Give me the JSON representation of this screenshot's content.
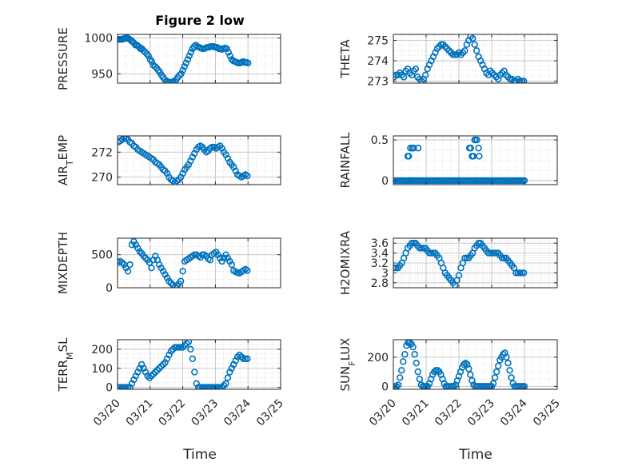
{
  "figure": {
    "title": "Figure 2 low",
    "marker_color": "#0072BD",
    "x_tick_labels": [
      "03/20",
      "03/21",
      "03/22",
      "03/23",
      "03/24",
      "03/25"
    ]
  },
  "chart_data": [
    {
      "type": "scatter",
      "ylabel": "PRESSURE",
      "xlabel": "",
      "ylim": [
        937,
        1005
      ],
      "yticks": [
        950,
        1000
      ],
      "ytick_labels": [
        "950",
        "1000"
      ],
      "x": [
        0.02,
        0.06,
        0.1,
        0.14,
        0.18,
        0.22,
        0.26,
        0.3,
        0.34,
        0.38,
        0.42,
        0.46,
        0.5,
        0.55,
        0.6,
        0.65,
        0.7,
        0.75,
        0.8,
        0.85,
        0.9,
        0.95,
        1.0,
        1.05,
        1.1,
        1.15,
        1.2,
        1.25,
        1.3,
        1.35,
        1.4,
        1.45,
        1.5,
        1.55,
        1.6,
        1.65,
        1.7,
        1.75,
        1.8,
        1.85,
        1.9,
        1.95,
        2.0,
        2.05,
        2.1,
        2.15,
        2.2,
        2.25,
        2.3,
        2.35,
        2.4,
        2.45,
        2.5,
        2.55,
        2.6,
        2.65,
        2.7,
        2.75,
        2.8,
        2.85,
        2.9,
        2.95,
        3.0,
        3.05,
        3.1,
        3.15,
        3.2,
        3.25,
        3.3,
        3.35,
        3.4,
        3.45,
        3.5,
        3.55,
        3.6,
        3.65,
        3.7,
        3.75,
        3.8,
        3.85,
        3.9,
        3.95,
        4.0
      ],
      "y": [
        998,
        998,
        998,
        998,
        999,
        999,
        1000,
        1000,
        999,
        998,
        996,
        995,
        993,
        990,
        990,
        988,
        985,
        985,
        982,
        980,
        978,
        975,
        970,
        967,
        962,
        960,
        958,
        955,
        952,
        948,
        945,
        942,
        940,
        939,
        938,
        938,
        939,
        940,
        942,
        945,
        948,
        950,
        955,
        960,
        965,
        970,
        975,
        980,
        985,
        988,
        990,
        988,
        987,
        986,
        985,
        985,
        986,
        987,
        987,
        988,
        988,
        988,
        987,
        987,
        985,
        985,
        984,
        985,
        986,
        985,
        980,
        975,
        970,
        968,
        967,
        966,
        965,
        965,
        966,
        967,
        966,
        966,
        965
      ]
    },
    {
      "type": "scatter",
      "ylabel": "THETA",
      "xlabel": "",
      "ylim": [
        272.9,
        275.3
      ],
      "yticks": [
        273,
        274,
        275
      ],
      "ytick_labels": [
        "273",
        "274",
        "275"
      ],
      "x": [
        0.02,
        0.08,
        0.14,
        0.2,
        0.26,
        0.32,
        0.38,
        0.44,
        0.5,
        0.56,
        0.62,
        0.68,
        0.74,
        0.8,
        0.86,
        0.92,
        0.98,
        1.04,
        1.1,
        1.16,
        1.22,
        1.28,
        1.34,
        1.4,
        1.46,
        1.52,
        1.58,
        1.64,
        1.7,
        1.76,
        1.82,
        1.88,
        1.94,
        2.0,
        2.06,
        2.12,
        2.18,
        2.24,
        2.3,
        2.36,
        2.42,
        2.48,
        2.54,
        2.6,
        2.66,
        2.72,
        2.78,
        2.84,
        2.9,
        2.96,
        3.02,
        3.08,
        3.14,
        3.2,
        3.26,
        3.32,
        3.38,
        3.44,
        3.5,
        3.56,
        3.62,
        3.68,
        3.74,
        3.8,
        3.86,
        3.92,
        3.98
      ],
      "y": [
        273.2,
        273.3,
        273.3,
        273.4,
        273.3,
        273.2,
        273.5,
        273.6,
        273.4,
        273.3,
        273.5,
        273.6,
        273.2,
        273.1,
        273.0,
        273.1,
        273.3,
        273.6,
        273.8,
        274.0,
        274.2,
        274.4,
        274.6,
        274.7,
        274.8,
        274.8,
        274.7,
        274.6,
        274.5,
        274.4,
        274.3,
        274.3,
        274.3,
        274.4,
        274.3,
        274.4,
        274.5,
        274.8,
        275.0,
        275.2,
        275.1,
        274.8,
        274.5,
        274.2,
        274.0,
        273.8,
        273.6,
        273.4,
        273.3,
        273.5,
        273.4,
        273.3,
        273.2,
        273.1,
        273.3,
        273.4,
        273.5,
        273.3,
        273.2,
        273.1,
        273.1,
        273.0,
        273.0,
        273.1,
        273.0,
        273.0,
        273.0
      ]
    },
    {
      "type": "scatter",
      "ylabel": "AIR_T EMP",
      "ylabel_main": "AIR",
      "ylabel_sub": "T",
      "ylabel_rest": "EMP",
      "xlabel": "",
      "ylim": [
        269.4,
        273.3
      ],
      "yticks": [
        270,
        272
      ],
      "ytick_labels": [
        "270",
        "272"
      ],
      "x": [
        0.02,
        0.08,
        0.14,
        0.2,
        0.26,
        0.32,
        0.38,
        0.44,
        0.5,
        0.56,
        0.62,
        0.68,
        0.74,
        0.8,
        0.86,
        0.92,
        0.98,
        1.04,
        1.1,
        1.16,
        1.22,
        1.28,
        1.34,
        1.4,
        1.46,
        1.52,
        1.58,
        1.64,
        1.7,
        1.76,
        1.82,
        1.88,
        1.94,
        2.0,
        2.06,
        2.12,
        2.18,
        2.24,
        2.3,
        2.36,
        2.42,
        2.48,
        2.54,
        2.6,
        2.66,
        2.72,
        2.78,
        2.84,
        2.9,
        2.96,
        3.02,
        3.08,
        3.14,
        3.2,
        3.26,
        3.32,
        3.38,
        3.44,
        3.5,
        3.56,
        3.62,
        3.68,
        3.74,
        3.8,
        3.86,
        3.92,
        3.98
      ],
      "y": [
        272.8,
        272.9,
        273.0,
        273.1,
        273.1,
        273.0,
        272.8,
        272.7,
        272.5,
        272.4,
        272.2,
        272.1,
        272.0,
        271.9,
        271.8,
        271.7,
        271.6,
        271.5,
        271.4,
        271.2,
        271.1,
        271.0,
        270.8,
        270.6,
        270.5,
        270.3,
        270.0,
        269.8,
        269.7,
        269.6,
        269.7,
        269.8,
        270.0,
        270.3,
        270.6,
        270.8,
        271.0,
        271.3,
        271.6,
        271.9,
        272.2,
        272.4,
        272.5,
        272.4,
        272.2,
        272.0,
        272.1,
        272.3,
        272.4,
        272.4,
        272.3,
        272.4,
        272.5,
        272.3,
        272.0,
        271.8,
        271.5,
        271.2,
        271.0,
        270.8,
        270.5,
        270.2,
        270.1,
        270.0,
        270.1,
        270.2,
        270.1
      ]
    },
    {
      "type": "scatter",
      "ylabel": "RAINFALL",
      "xlabel": "",
      "ylim": [
        -0.05,
        0.55
      ],
      "yticks": [
        0,
        0.5
      ],
      "ytick_labels": [
        "0",
        "0.5"
      ],
      "x": [
        0.0,
        0.05,
        0.1,
        0.15,
        0.2,
        0.25,
        0.3,
        0.35,
        0.4,
        0.45,
        0.5,
        0.5,
        0.55,
        0.55,
        0.6,
        0.65,
        0.7,
        0.75,
        0.8,
        0.85,
        0.9,
        0.95,
        1.0,
        1.05,
        1.1,
        1.15,
        1.2,
        1.25,
        1.3,
        1.35,
        1.4,
        1.45,
        1.5,
        1.55,
        1.6,
        1.65,
        1.7,
        1.75,
        1.8,
        1.85,
        1.9,
        1.95,
        2.0,
        2.05,
        2.1,
        2.15,
        2.2,
        2.25,
        2.3,
        2.35,
        2.4,
        2.45,
        2.5,
        2.55,
        2.6,
        2.65,
        2.7,
        2.75,
        2.8,
        2.85,
        2.9,
        2.95,
        3.0,
        3.05,
        3.1,
        3.15,
        3.2,
        3.25,
        3.3,
        3.35,
        3.4,
        3.45,
        3.5,
        3.55,
        3.6,
        3.65,
        3.7,
        3.75,
        3.8,
        3.85,
        3.9,
        3.95,
        4.0,
        0.44,
        0.47,
        0.52,
        0.58,
        0.62,
        0.76,
        2.32,
        2.36,
        2.4,
        2.44,
        2.48,
        2.5,
        2.55,
        2.6,
        2.62
      ],
      "y": [
        0,
        0,
        0,
        0,
        0,
        0,
        0,
        0,
        0,
        0,
        0,
        0,
        0,
        0,
        0,
        0,
        0,
        0,
        0,
        0,
        0,
        0,
        0,
        0,
        0,
        0,
        0,
        0,
        0,
        0,
        0,
        0,
        0,
        0,
        0,
        0,
        0,
        0,
        0,
        0,
        0,
        0,
        0,
        0,
        0,
        0,
        0,
        0,
        0,
        0,
        0,
        0,
        0,
        0,
        0,
        0,
        0,
        0,
        0,
        0,
        0,
        0,
        0,
        0,
        0,
        0,
        0,
        0,
        0,
        0,
        0,
        0,
        0,
        0,
        0,
        0,
        0,
        0,
        0,
        0,
        0,
        0,
        0,
        0.3,
        0.3,
        0.4,
        0.4,
        0.4,
        0.4,
        0.4,
        0.4,
        0.3,
        0.3,
        0.5,
        0.5,
        0.5,
        0.4,
        0.3
      ]
    },
    {
      "type": "scatter",
      "ylabel": "MIXDEPTH",
      "xlabel": "",
      "ylim": [
        0,
        750
      ],
      "yticks": [
        0,
        500
      ],
      "ytick_labels": [
        "0",
        "500"
      ],
      "x": [
        0.02,
        0.08,
        0.14,
        0.2,
        0.26,
        0.32,
        0.38,
        0.44,
        0.5,
        0.56,
        0.62,
        0.68,
        0.74,
        0.8,
        0.86,
        0.92,
        0.98,
        1.04,
        1.1,
        1.16,
        1.22,
        1.28,
        1.34,
        1.4,
        1.46,
        1.52,
        1.58,
        1.64,
        1.7,
        1.76,
        1.82,
        1.88,
        1.94,
        2.0,
        2.06,
        2.12,
        2.18,
        2.24,
        2.3,
        2.36,
        2.42,
        2.48,
        2.54,
        2.6,
        2.66,
        2.72,
        2.78,
        2.84,
        2.9,
        2.96,
        3.02,
        3.08,
        3.14,
        3.2,
        3.26,
        3.32,
        3.38,
        3.44,
        3.5,
        3.56,
        3.62,
        3.68,
        3.74,
        3.8,
        3.86,
        3.92,
        3.98
      ],
      "y": [
        380,
        400,
        380,
        350,
        300,
        250,
        350,
        650,
        700,
        650,
        600,
        550,
        520,
        480,
        450,
        420,
        380,
        300,
        420,
        480,
        420,
        350,
        300,
        250,
        200,
        150,
        100,
        70,
        40,
        20,
        30,
        60,
        100,
        250,
        400,
        420,
        440,
        460,
        480,
        500,
        500,
        480,
        460,
        500,
        500,
        480,
        440,
        420,
        500,
        520,
        540,
        500,
        450,
        400,
        450,
        500,
        450,
        400,
        350,
        260,
        240,
        230,
        220,
        240,
        260,
        280,
        260
      ]
    },
    {
      "type": "scatter",
      "ylabel": "H2OMIXRA",
      "xlabel": "",
      "ylim": [
        2.7,
        3.7
      ],
      "yticks": [
        2.8,
        3,
        3.2,
        3.4,
        3.6
      ],
      "ytick_labels": [
        "2.8",
        "3",
        "3.2",
        "3.4",
        "3.6"
      ],
      "x": [
        0.02,
        0.08,
        0.14,
        0.2,
        0.26,
        0.32,
        0.38,
        0.44,
        0.5,
        0.56,
        0.62,
        0.68,
        0.74,
        0.8,
        0.86,
        0.92,
        0.98,
        1.04,
        1.1,
        1.16,
        1.22,
        1.28,
        1.34,
        1.4,
        1.46,
        1.52,
        1.58,
        1.64,
        1.7,
        1.76,
        1.82,
        1.88,
        1.94,
        2.0,
        2.06,
        2.12,
        2.18,
        2.24,
        2.3,
        2.36,
        2.42,
        2.48,
        2.54,
        2.6,
        2.66,
        2.72,
        2.78,
        2.84,
        2.9,
        2.96,
        3.02,
        3.08,
        3.14,
        3.2,
        3.26,
        3.32,
        3.38,
        3.44,
        3.5,
        3.56,
        3.62,
        3.68,
        3.74,
        3.8,
        3.86,
        3.92,
        3.98
      ],
      "y": [
        3.1,
        3.1,
        3.1,
        3.15,
        3.2,
        3.3,
        3.4,
        3.5,
        3.55,
        3.6,
        3.6,
        3.6,
        3.55,
        3.5,
        3.5,
        3.5,
        3.5,
        3.45,
        3.4,
        3.4,
        3.4,
        3.4,
        3.35,
        3.3,
        3.2,
        3.1,
        3.0,
        2.95,
        2.9,
        2.85,
        2.8,
        2.75,
        2.85,
        2.95,
        3.1,
        3.2,
        3.3,
        3.3,
        3.3,
        3.35,
        3.4,
        3.5,
        3.55,
        3.6,
        3.6,
        3.55,
        3.5,
        3.45,
        3.4,
        3.4,
        3.4,
        3.4,
        3.4,
        3.4,
        3.35,
        3.3,
        3.3,
        3.3,
        3.25,
        3.2,
        3.15,
        3.1,
        3.0,
        3.0,
        3.0,
        3.0,
        3.0
      ]
    },
    {
      "type": "scatter",
      "ylabel": "TERR_M SL",
      "ylabel_main": "TERR",
      "ylabel_sub": "M",
      "ylabel_rest": "SL",
      "xlabel": "Time",
      "ylim": [
        -10,
        250
      ],
      "yticks": [
        0,
        100,
        200
      ],
      "ytick_labels": [
        "0",
        "100",
        "200"
      ],
      "x": [
        0.02,
        0.08,
        0.14,
        0.2,
        0.26,
        0.32,
        0.38,
        0.44,
        0.5,
        0.56,
        0.62,
        0.68,
        0.74,
        0.8,
        0.86,
        0.92,
        0.98,
        1.04,
        1.1,
        1.16,
        1.22,
        1.28,
        1.34,
        1.4,
        1.46,
        1.52,
        1.58,
        1.64,
        1.7,
        1.76,
        1.82,
        1.88,
        1.94,
        2.0,
        2.06,
        2.12,
        2.18,
        2.24,
        2.3,
        2.36,
        2.42,
        2.48,
        2.54,
        2.6,
        2.66,
        2.72,
        2.78,
        2.84,
        2.9,
        2.96,
        3.02,
        3.08,
        3.14,
        3.2,
        3.26,
        3.32,
        3.38,
        3.44,
        3.5,
        3.56,
        3.62,
        3.68,
        3.74,
        3.8,
        3.86,
        3.92,
        3.98
      ],
      "y": [
        0,
        0,
        0,
        0,
        0,
        0,
        0,
        20,
        40,
        60,
        80,
        100,
        120,
        100,
        80,
        60,
        50,
        60,
        70,
        80,
        90,
        100,
        110,
        120,
        130,
        150,
        170,
        190,
        200,
        210,
        210,
        210,
        210,
        210,
        220,
        230,
        240,
        200,
        150,
        80,
        20,
        0,
        0,
        0,
        0,
        0,
        0,
        0,
        0,
        0,
        0,
        0,
        0,
        0,
        10,
        20,
        50,
        80,
        100,
        120,
        140,
        160,
        170,
        160,
        150,
        150,
        150
      ]
    },
    {
      "type": "scatter",
      "ylabel": "SUN_F LUX",
      "ylabel_main": "SUN",
      "ylabel_sub": "F",
      "ylabel_rest": "LUX",
      "xlabel": "Time",
      "ylim": [
        -20,
        320
      ],
      "yticks": [
        0,
        200
      ],
      "ytick_labels": [
        "0",
        "200"
      ],
      "x": [
        0.0,
        0.05,
        0.1,
        0.15,
        0.2,
        0.25,
        0.3,
        0.35,
        0.4,
        0.45,
        0.5,
        0.55,
        0.6,
        0.65,
        0.7,
        0.75,
        0.8,
        0.85,
        0.9,
        0.95,
        1.0,
        1.05,
        1.1,
        1.15,
        1.2,
        1.25,
        1.3,
        1.35,
        1.4,
        1.45,
        1.5,
        1.55,
        1.6,
        1.65,
        1.7,
        1.75,
        1.8,
        1.85,
        1.9,
        1.95,
        2.0,
        2.05,
        2.1,
        2.15,
        2.2,
        2.25,
        2.3,
        2.35,
        2.4,
        2.45,
        2.5,
        2.55,
        2.6,
        2.65,
        2.7,
        2.75,
        2.8,
        2.85,
        2.9,
        2.95,
        3.0,
        3.05,
        3.1,
        3.15,
        3.2,
        3.25,
        3.3,
        3.35,
        3.4,
        3.45,
        3.5,
        3.55,
        3.6,
        3.65,
        3.7,
        3.75,
        3.8,
        3.85,
        3.9,
        3.95,
        4.0
      ],
      "y": [
        0,
        0,
        0,
        10,
        60,
        110,
        170,
        220,
        280,
        300,
        300,
        290,
        270,
        220,
        160,
        100,
        50,
        10,
        0,
        0,
        0,
        0,
        20,
        50,
        80,
        100,
        110,
        110,
        100,
        80,
        50,
        20,
        0,
        0,
        0,
        0,
        0,
        0,
        10,
        40,
        70,
        100,
        130,
        150,
        160,
        150,
        120,
        80,
        40,
        10,
        0,
        0,
        0,
        0,
        0,
        0,
        0,
        0,
        0,
        0,
        0,
        20,
        60,
        100,
        140,
        180,
        200,
        220,
        230,
        200,
        160,
        110,
        60,
        20,
        0,
        0,
        0,
        0,
        0,
        0,
        0
      ]
    }
  ]
}
